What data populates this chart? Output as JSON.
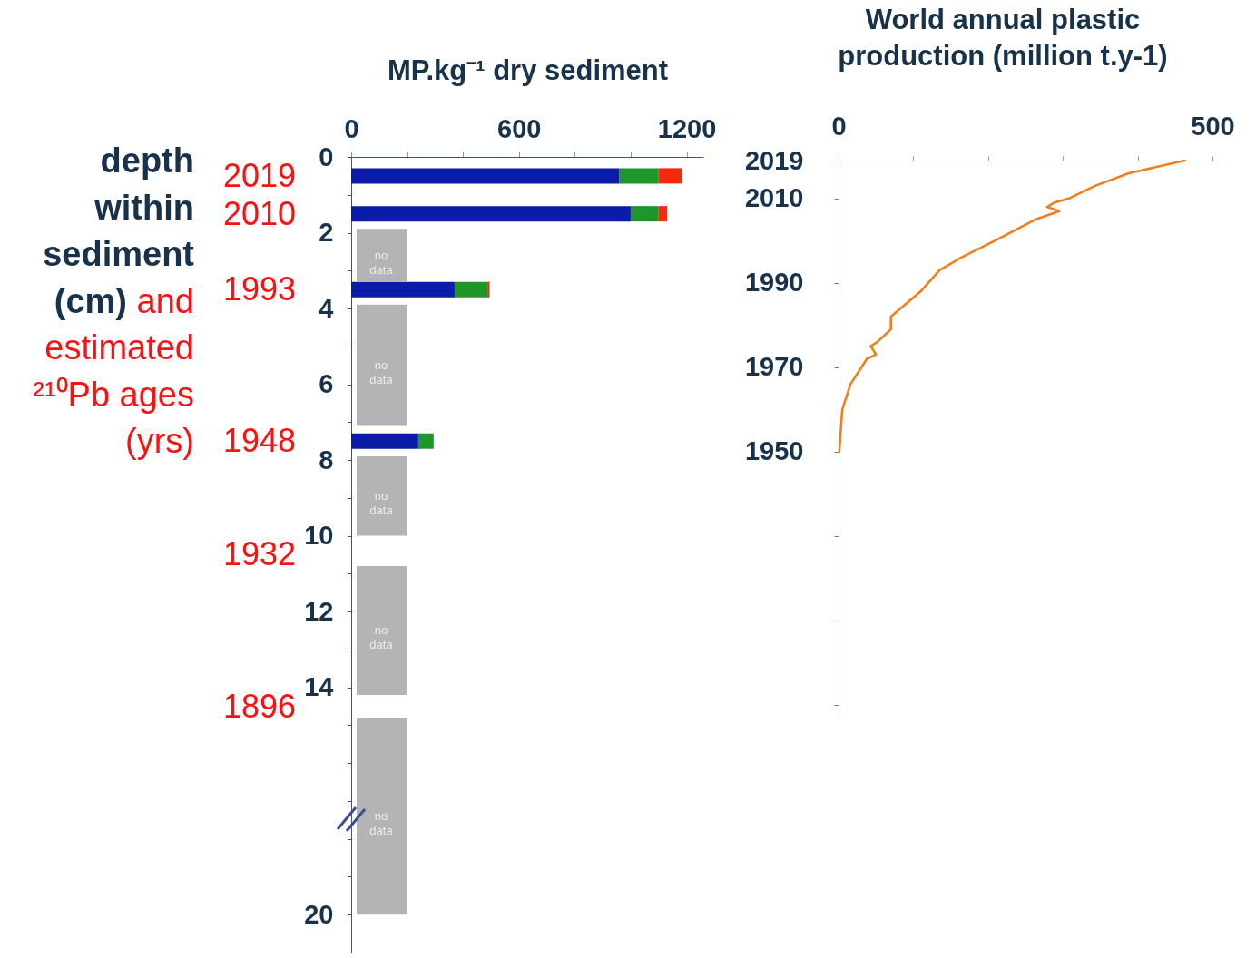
{
  "chart_data": [
    {
      "type": "bar",
      "orientation": "horizontal",
      "stacked": true,
      "xlabel": "MP.kg⁻¹ dry sediment",
      "ylabel": "depth within sediment (cm)",
      "x": [
        0.5,
        1.5,
        3.5,
        7.5
      ],
      "series": [
        {
          "color": "#0a1ca8",
          "values": [
            960,
            1000,
            370,
            240
          ]
        },
        {
          "color": "#1e9628",
          "values": [
            140,
            100,
            120,
            55
          ]
        },
        {
          "color": "#f52810",
          "values": [
            85,
            30,
            5,
            null
          ]
        }
      ],
      "xlim": [
        0,
        1260
      ],
      "xticks": [
        0,
        {
          "value": 200,
          "label": null
        },
        {
          "value": 400,
          "label": null
        },
        600,
        {
          "value": 800,
          "label": null
        },
        {
          "value": 1000,
          "label": null
        },
        1200
      ],
      "ylim": [
        21,
        0
      ],
      "yticks": [
        0,
        {
          "value": 1,
          "label": null
        },
        2,
        {
          "value": 3,
          "label": null
        },
        4,
        {
          "value": 5,
          "label": null
        },
        6,
        {
          "value": 7,
          "label": null
        },
        8,
        {
          "value": 9,
          "label": null
        },
        10,
        {
          "value": 11,
          "label": null
        },
        12,
        {
          "value": 13,
          "label": null
        },
        14,
        {
          "value": 15,
          "label": null
        },
        {
          "value": 16,
          "label": null
        },
        {
          "value": 17,
          "label": null
        },
        {
          "value": 18,
          "label": null
        },
        {
          "value": 19,
          "label": null
        },
        20
      ],
      "bands": [
        {
          "axis": "y",
          "from": 1.9,
          "to": 3.3,
          "label": "no data",
          "color": "#b4b4b4"
        },
        {
          "axis": "y",
          "from": 3.9,
          "to": 7.1,
          "label": "no data",
          "color": "#b4b4b4"
        },
        {
          "axis": "y",
          "from": 7.9,
          "to": 10.0,
          "label": "no data",
          "color": "#b4b4b4"
        },
        {
          "axis": "y",
          "from": 10.8,
          "to": 14.2,
          "label": "no data",
          "color": "#b4b4b4"
        },
        {
          "axis": "y",
          "from": 14.8,
          "to": 20.0,
          "label": "no data",
          "color": "#b4b4b4"
        }
      ],
      "annotations": [
        "and estimated ²¹⁰Pb ages (yrs)",
        "2019",
        "2010",
        "1993",
        "1948",
        "1932",
        "1896"
      ]
    },
    {
      "type": "line",
      "title": "World annual plastic production (million t.y-1)",
      "series": [
        {
          "color": "#f07f1a",
          "x": [
            1,
            5,
            16,
            38,
            50,
            43,
            52,
            70,
            70,
            110,
            135,
            164,
            209,
            263,
            295,
            279,
            288,
            308,
            343,
            388,
            463
          ],
          "values": [
            1950,
            1960,
            1966,
            1972,
            1973,
            1975,
            1976,
            1979,
            1982,
            1988,
            1993,
            1996,
            2000,
            2005,
            2007,
            2008,
            2009,
            2010,
            2013,
            2016,
            2019
          ]
        }
      ],
      "xlim": [
        0,
        500
      ],
      "xticks": [
        0,
        {
          "value": 100,
          "label": null
        },
        {
          "value": 200,
          "label": null
        },
        {
          "value": 300,
          "label": null
        },
        {
          "value": 400,
          "label": null
        },
        500
      ],
      "ylim": [
        1888,
        2019
      ],
      "yticks": [
        2019,
        2010,
        1990,
        1970,
        1950,
        {
          "value": 1930,
          "label": null
        },
        {
          "value": 1910,
          "label": null
        },
        {
          "value": 1890,
          "label": null
        }
      ]
    }
  ]
}
